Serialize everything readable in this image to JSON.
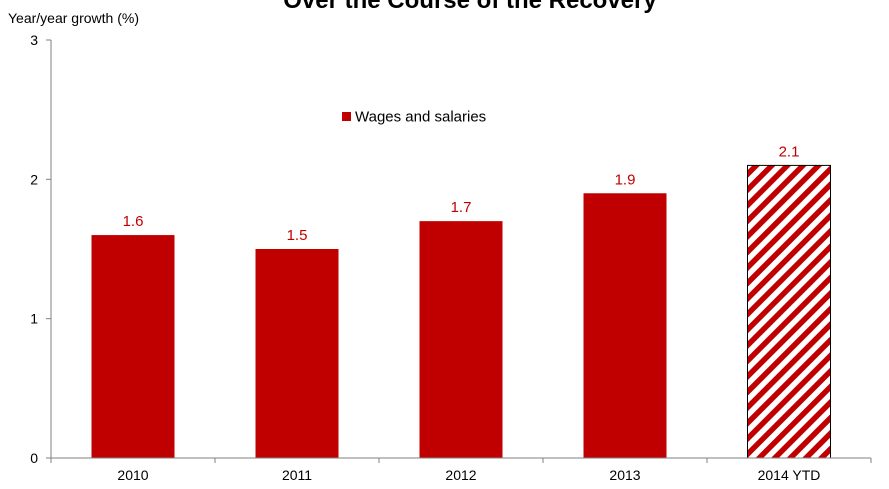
{
  "chart_data": {
    "type": "bar",
    "title": "Over the Course of the Recovery",
    "ylabel": "Year/year growth (%)",
    "xlabel": "",
    "categories": [
      "2010",
      "2011",
      "2012",
      "2013",
      "2014 YTD"
    ],
    "series": [
      {
        "name": "Wages and salaries",
        "values": [
          1.6,
          1.5,
          1.7,
          1.9,
          2.1
        ]
      }
    ],
    "ylim": [
      0,
      3
    ],
    "yticks": [
      "0",
      "1",
      "2",
      "3"
    ],
    "data_labels": [
      "1.6",
      "1.5",
      "1.7",
      "1.9",
      "2.1"
    ],
    "hatched_categories": [
      "2014 YTD"
    ],
    "grid": false,
    "legend_position": "top-center",
    "colors": {
      "bar": "#c00000",
      "label": "#c00000",
      "axis": "#808080",
      "hatch_background": "#ffffff"
    }
  }
}
